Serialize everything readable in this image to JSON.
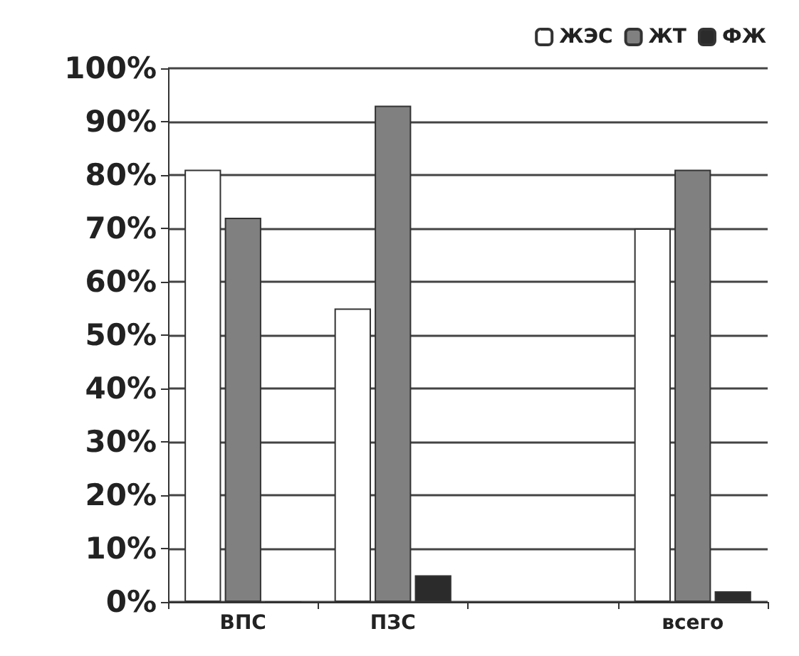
{
  "chart_data": {
    "type": "bar",
    "categories": [
      "ВПС",
      "ПЗС",
      null,
      "всего"
    ],
    "series": [
      {
        "name": "ЖЭС",
        "color": "#ffffff",
        "values": [
          81,
          55,
          null,
          70
        ]
      },
      {
        "name": "ЖТ",
        "color": "#808080",
        "values": [
          72,
          93,
          null,
          81
        ]
      },
      {
        "name": "ФЖ",
        "color": "#2b2b2b",
        "values": [
          0,
          5,
          null,
          2
        ]
      }
    ],
    "ylim": [
      0,
      100
    ],
    "yticks": [
      {
        "value": 0,
        "label": "0%"
      },
      {
        "value": 10,
        "label": "10%"
      },
      {
        "value": 20,
        "label": "20%"
      },
      {
        "value": 30,
        "label": "30%"
      },
      {
        "value": 40,
        "label": "40%"
      },
      {
        "value": 50,
        "label": "50%"
      },
      {
        "value": 60,
        "label": "60%"
      },
      {
        "value": 70,
        "label": "70%"
      },
      {
        "value": 80,
        "label": "80%"
      },
      {
        "value": 90,
        "label": "90%"
      },
      {
        "value": 100,
        "label": "100%"
      }
    ],
    "grid": "y",
    "legend": "top right"
  }
}
